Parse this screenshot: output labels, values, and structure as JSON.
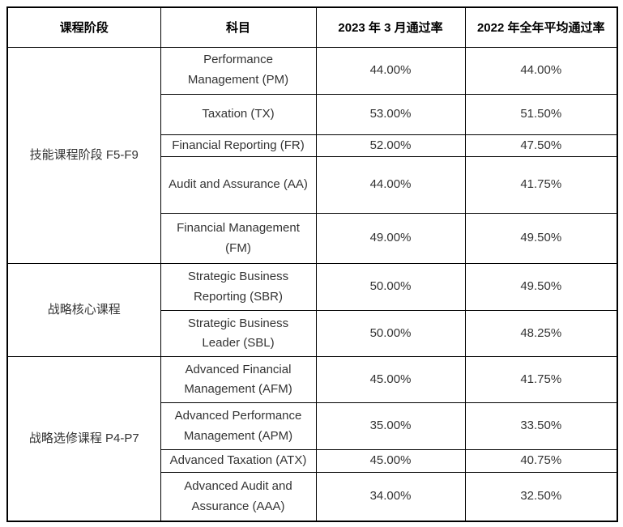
{
  "table": {
    "columns": [
      {
        "label": "课程阶段"
      },
      {
        "label": "科目"
      },
      {
        "label": "2023 年 3 月通过率"
      },
      {
        "label": "2022 年全年平均通过率"
      }
    ],
    "groups": [
      {
        "stage": "技能课程阶段 F5-F9",
        "rows": [
          {
            "subject": "Performance\nManagement (PM)",
            "rate_2023_mar": "44.00%",
            "rate_2022_avg": "44.00%"
          },
          {
            "subject": "Taxation (TX)",
            "rate_2023_mar": "53.00%",
            "rate_2022_avg": "51.50%"
          },
          {
            "subject": "Financial Reporting (FR)",
            "rate_2023_mar": "52.00%",
            "rate_2022_avg": "47.50%"
          },
          {
            "subject": "Audit and Assurance (AA)",
            "rate_2023_mar": "44.00%",
            "rate_2022_avg": "41.75%"
          },
          {
            "subject": "Financial Management\n(FM)",
            "rate_2023_mar": "49.00%",
            "rate_2022_avg": "49.50%"
          }
        ]
      },
      {
        "stage": "战略核心课程",
        "rows": [
          {
            "subject": "Strategic Business\nReporting (SBR)",
            "rate_2023_mar": "50.00%",
            "rate_2022_avg": "49.50%"
          },
          {
            "subject": "Strategic Business\nLeader (SBL)",
            "rate_2023_mar": "50.00%",
            "rate_2022_avg": "48.25%"
          }
        ]
      },
      {
        "stage": "战略选修课程 P4-P7",
        "rows": [
          {
            "subject": "Advanced Financial\nManagement (AFM)",
            "rate_2023_mar": "45.00%",
            "rate_2022_avg": "41.75%"
          },
          {
            "subject": "Advanced Performance\nManagement (APM)",
            "rate_2023_mar": "35.00%",
            "rate_2022_avg": "33.50%"
          },
          {
            "subject": "Advanced Taxation (ATX)",
            "rate_2023_mar": "45.00%",
            "rate_2022_avg": "40.75%"
          },
          {
            "subject": "Advanced Audit and\nAssurance (AAA)",
            "rate_2023_mar": "34.00%",
            "rate_2022_avg": "32.50%"
          }
        ]
      }
    ],
    "colors": {
      "border": "#000000",
      "header_text": "#000000",
      "body_text": "#333333",
      "background": "#ffffff"
    }
  }
}
